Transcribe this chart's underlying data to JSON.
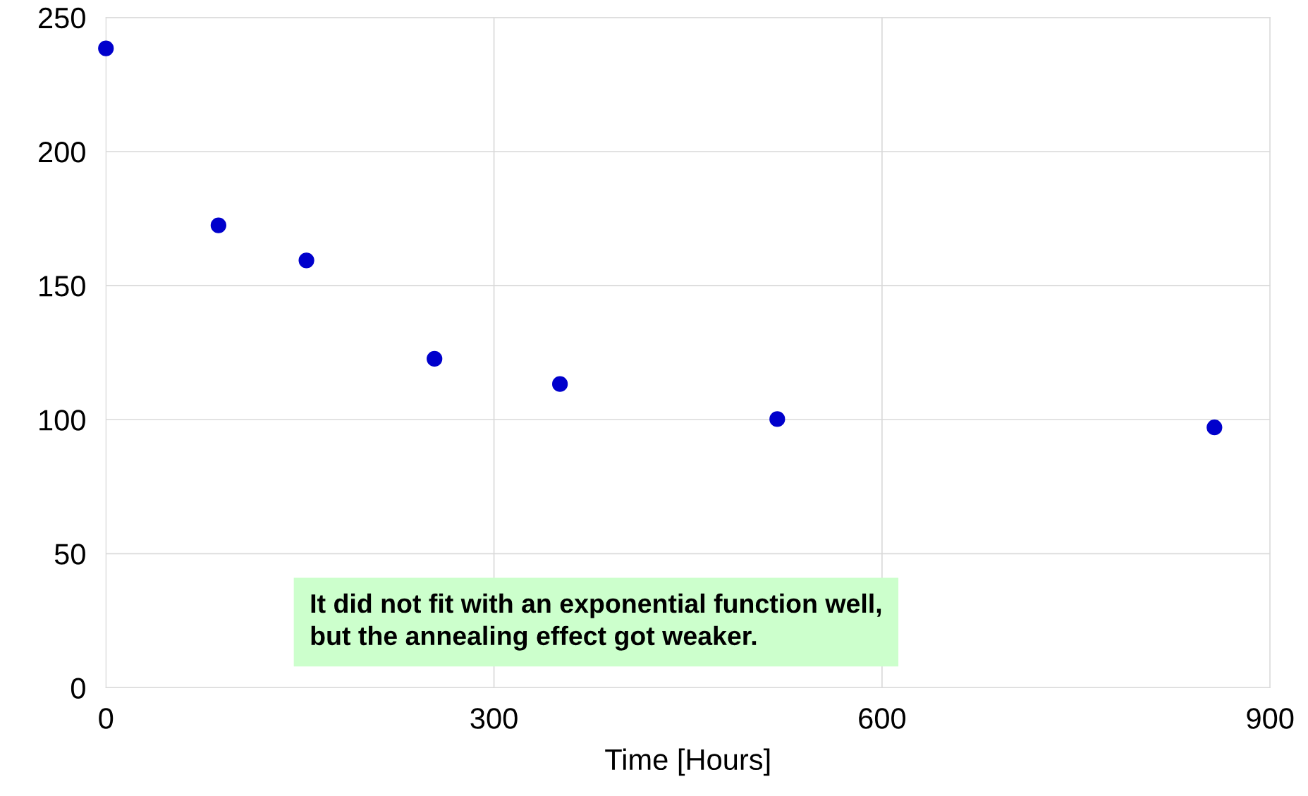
{
  "chart_data": {
    "type": "scatter",
    "xlabel": "Time [Hours]",
    "x": [
      0,
      87,
      155,
      254,
      351,
      519,
      857
    ],
    "series": [
      {
        "color": "#0000cc",
        "values": [
          238.5,
          172.5,
          159.4,
          122.7,
          113.3,
          100.2,
          97.1
        ]
      }
    ],
    "xlim": [
      0,
      900
    ],
    "xticks": [
      0,
      300,
      600,
      900
    ],
    "ylim": [
      0,
      250
    ],
    "yticks": [
      0,
      50,
      100,
      150,
      200,
      250
    ],
    "grid": true,
    "marker": "circle",
    "annotations": [
      "It did not fit with an exponential function well,\nbut the annealing effect got weaker."
    ]
  }
}
